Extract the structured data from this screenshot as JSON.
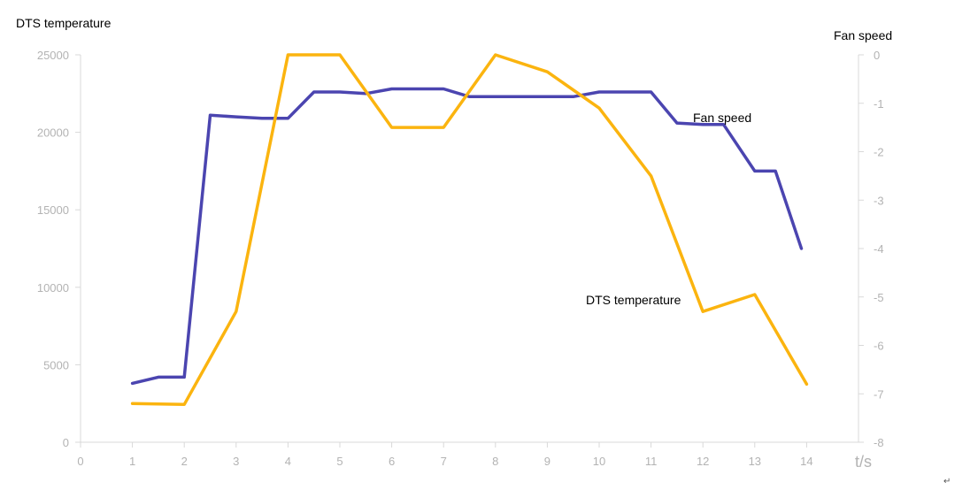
{
  "chart_data": {
    "type": "line",
    "xlabel": "t/s",
    "x_ticks": [
      0,
      1,
      2,
      3,
      4,
      5,
      6,
      7,
      8,
      9,
      10,
      11,
      12,
      13,
      14
    ],
    "xlim": [
      0,
      15
    ],
    "y_left": {
      "label": "DTS temperature",
      "ylim": [
        0,
        25000
      ],
      "ticks": [
        0,
        5000,
        10000,
        15000,
        20000,
        25000
      ]
    },
    "y_right": {
      "label": "Fan speed",
      "ylim": [
        -8,
        0
      ],
      "ticks": [
        0,
        -1,
        -2,
        -3,
        -4,
        -5,
        -6,
        -7,
        -8
      ]
    },
    "series": [
      {
        "name": "Fan speed",
        "axis": "left",
        "color": "#4b45b0",
        "x": [
          1,
          1.5,
          2,
          2.5,
          3,
          3.5,
          4,
          4.5,
          5,
          5.5,
          6,
          6.5,
          7,
          7.5,
          8,
          8.5,
          9,
          9.5,
          10,
          10.5,
          11,
          11.5,
          12,
          12.4,
          13,
          13.4,
          13.9
        ],
        "values": [
          3800,
          4200,
          4200,
          21100,
          21000,
          20900,
          20900,
          22600,
          22600,
          22500,
          22800,
          22800,
          22800,
          22300,
          22300,
          22300,
          22300,
          22300,
          22600,
          22600,
          22600,
          20600,
          20500,
          20500,
          17500,
          17500,
          12500
        ]
      },
      {
        "name": "DTS temperature",
        "axis": "right",
        "color": "#fbb40f",
        "x": [
          1,
          2,
          3,
          4,
          5,
          6,
          7,
          8,
          9,
          10,
          11,
          12,
          13,
          14
        ],
        "values": [
          -7.2,
          -7.22,
          -5.3,
          0,
          0,
          -1.5,
          -1.5,
          0,
          -0.35,
          -1.1,
          -2.5,
          -5.3,
          -4.95,
          -6.8
        ]
      }
    ],
    "annotations": [
      {
        "text": "Fan speed",
        "x": 12,
        "y_left": 20400
      },
      {
        "text": "DTS temperature",
        "x": 10,
        "y_left": 9000
      }
    ],
    "grid": false
  },
  "footer_mark": "↵"
}
